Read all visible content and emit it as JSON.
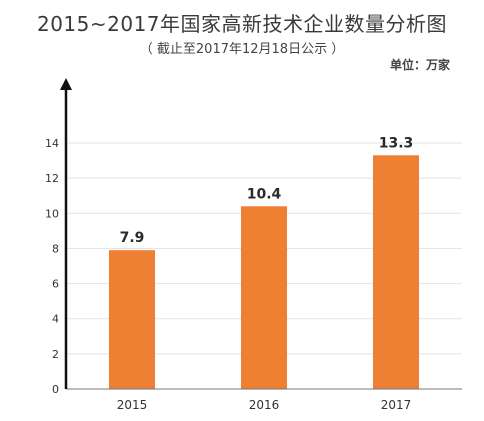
{
  "chart_data": {
    "type": "bar",
    "title": "2015~2017年国家高新技术企业数量分析图",
    "subtitle": "（ 截止至2017年12月18日公示 ）",
    "unit_label": "单位：万家",
    "categories": [
      "2015",
      "2016",
      "2017"
    ],
    "values": [
      7.9,
      10.4,
      13.3
    ],
    "data_labels": [
      "7.9",
      "10.4",
      "13.3"
    ],
    "y_ticks": [
      0,
      2,
      4,
      6,
      8,
      10,
      12,
      14
    ],
    "y_tick_labels": [
      "0",
      "2",
      "4",
      "6",
      "8",
      "10",
      "12",
      "14"
    ],
    "ylim": [
      0,
      14
    ],
    "grid": true,
    "legend": "none",
    "bar_color": "#ef7f33",
    "grid_color": "#e3e3e3",
    "axis_color": "#111111"
  }
}
